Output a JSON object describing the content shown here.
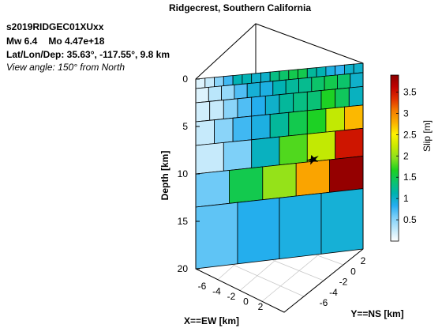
{
  "info": {
    "event_id": "s2019RIDGEC01XUxx",
    "mw": "Mw 6.4",
    "mo": "Mo 4.47e+18",
    "location": "Lat/Lon/Dep: 35.63°, -117.55°, 9.8 km",
    "view": "View angle: 150° from North"
  },
  "chart_data": {
    "type": "heatmap",
    "title": "Ridgecrest, Southern California",
    "xlabel": "X==EW [km]",
    "ylabel": "Y==NS [km]",
    "zlabel": "Depth [km]",
    "x_ticks": [
      "-6",
      "-4",
      "-2",
      "0",
      "2"
    ],
    "y_ticks": [
      "2",
      "0",
      "-2",
      "-4",
      "-6"
    ],
    "z_ticks": [
      "0",
      "5",
      "10",
      "15",
      "20"
    ],
    "zlim": [
      0,
      20
    ],
    "grid": true,
    "colorbar": {
      "label": "Slip [m]",
      "range": [
        0,
        3.9
      ],
      "ticks": [
        "0.5",
        "1",
        "1.5",
        "2",
        "2.5",
        "3",
        "3.5"
      ],
      "colormap": [
        "#ffffff",
        "#bfe8fb",
        "#7ccff8",
        "#26aef0",
        "#00b2b0",
        "#0cc46c",
        "#1ed21e",
        "#8ae01e",
        "#c8ea00",
        "#fff200",
        "#fbb000",
        "#f57c00",
        "#e03000",
        "#c00000",
        "#8b0000"
      ]
    },
    "slip_rows": [
      {
        "depth_top": 0,
        "depth_bottom": 1,
        "values": [
          0.15,
          0.25,
          0.5,
          0.75,
          1.1,
          1.1,
          1.0,
          1.0,
          1.3,
          1.4,
          1.5,
          1.5,
          1.2,
          1.1,
          0.9,
          0.8,
          1.0,
          1.0
        ]
      },
      {
        "depth_top": 1,
        "depth_bottom": 2.5,
        "values": [
          0.15,
          0.3,
          0.45,
          0.7,
          0.95,
          0.9,
          1.1,
          1.2,
          1.25,
          1.4,
          1.5,
          1.4,
          1.0
        ]
      },
      {
        "depth_top": 2.5,
        "depth_bottom": 4.5,
        "values": [
          0.2,
          0.25,
          0.5,
          0.7,
          0.85,
          1.0,
          1.2,
          1.3,
          1.35,
          1.65,
          1.45,
          1.05
        ]
      },
      {
        "depth_top": 4.5,
        "depth_bottom": 7,
        "values": [
          0.25,
          0.5,
          0.75,
          0.9,
          1.2,
          1.5,
          1.65,
          2.2,
          2.75
        ]
      },
      {
        "depth_top": 7,
        "depth_bottom": 10,
        "values": [
          0.25,
          0.55,
          1.05,
          1.8,
          2.2,
          3.5
        ]
      },
      {
        "depth_top": 10,
        "depth_bottom": 13.5,
        "values": [
          0.6,
          1.5,
          2.0,
          2.85,
          3.85
        ]
      },
      {
        "depth_top": 13.5,
        "depth_bottom": 20,
        "values": [
          0.65,
          0.85,
          0.9,
          0.95
        ]
      }
    ],
    "hypocenter_depth": 9.8,
    "hypocenter_marker": "star"
  }
}
